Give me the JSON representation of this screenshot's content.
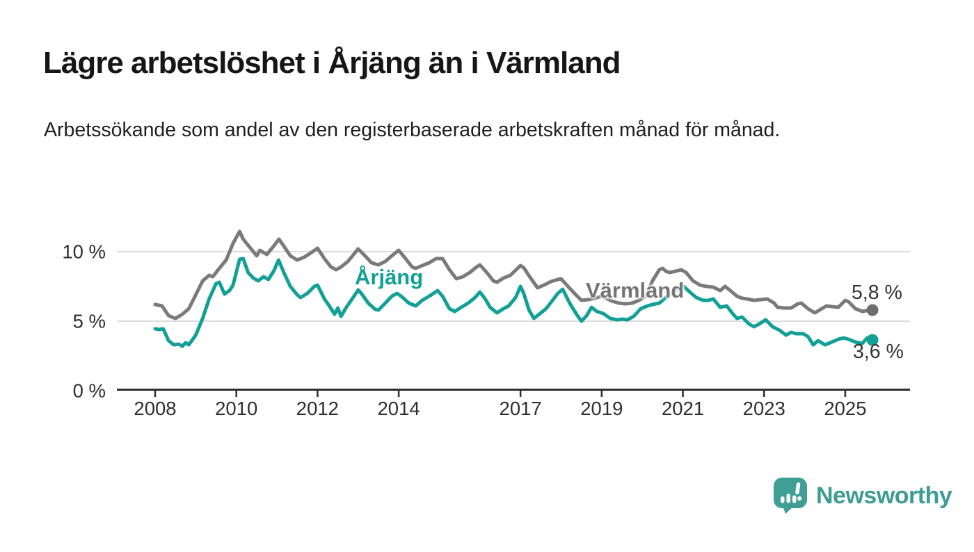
{
  "page": {
    "title": "Lägre arbetslöshet i Årjäng än i Värmland",
    "subtitle": "Arbetssökande som andel av den registerbaserade arbetskraften månad för månad."
  },
  "chart_data": {
    "type": "line",
    "title": "Lägre arbetslöshet i Årjäng än i Värmland",
    "subtitle": "Arbetssökande som andel av den registerbaserade arbetskraften månad för månad.",
    "unit": "%",
    "grid": "horizontal",
    "x_range": [
      2008.0,
      2025.67
    ],
    "ylim": [
      0,
      11.8
    ],
    "x_axis": {
      "ticks": [
        2008,
        2010,
        2012,
        2014,
        2017,
        2019,
        2021,
        2023,
        2025
      ]
    },
    "y_axis": {
      "ticks": [
        {
          "value": 0,
          "label": "0 %"
        },
        {
          "value": 5,
          "label": "5 %"
        },
        {
          "value": 10,
          "label": "10 %"
        }
      ]
    },
    "series": [
      {
        "name": "Värmland",
        "color": "#7a7a7a",
        "dot_color": "#6d6d6d",
        "end_label": "5,8 %",
        "end_value": 5.8,
        "points": [
          [
            2008.0,
            6.2
          ],
          [
            2008.17,
            6.1
          ],
          [
            2008.33,
            5.4
          ],
          [
            2008.5,
            5.2
          ],
          [
            2008.67,
            5.5
          ],
          [
            2008.83,
            5.9
          ],
          [
            2009.0,
            6.9
          ],
          [
            2009.17,
            7.9
          ],
          [
            2009.33,
            8.3
          ],
          [
            2009.42,
            8.2
          ],
          [
            2009.58,
            8.8
          ],
          [
            2009.75,
            9.4
          ],
          [
            2009.92,
            10.6
          ],
          [
            2010.08,
            11.45
          ],
          [
            2010.17,
            10.9
          ],
          [
            2010.25,
            10.6
          ],
          [
            2010.42,
            10.0
          ],
          [
            2010.5,
            9.7
          ],
          [
            2010.58,
            10.1
          ],
          [
            2010.75,
            9.8
          ],
          [
            2010.92,
            10.4
          ],
          [
            2011.05,
            10.9
          ],
          [
            2011.17,
            10.4
          ],
          [
            2011.33,
            9.7
          ],
          [
            2011.5,
            9.4
          ],
          [
            2011.67,
            9.6
          ],
          [
            2011.83,
            9.9
          ],
          [
            2012.0,
            10.25
          ],
          [
            2012.17,
            9.5
          ],
          [
            2012.33,
            8.9
          ],
          [
            2012.46,
            8.7
          ],
          [
            2012.58,
            8.9
          ],
          [
            2012.75,
            9.3
          ],
          [
            2013.0,
            10.2
          ],
          [
            2013.17,
            9.7
          ],
          [
            2013.33,
            9.2
          ],
          [
            2013.5,
            9.05
          ],
          [
            2013.67,
            9.3
          ],
          [
            2013.83,
            9.7
          ],
          [
            2014.0,
            10.1
          ],
          [
            2014.17,
            9.5
          ],
          [
            2014.33,
            8.9
          ],
          [
            2014.42,
            8.8
          ],
          [
            2014.58,
            9.0
          ],
          [
            2014.75,
            9.2
          ],
          [
            2014.92,
            9.5
          ],
          [
            2015.08,
            9.5
          ],
          [
            2015.25,
            8.7
          ],
          [
            2015.42,
            8.05
          ],
          [
            2015.58,
            8.2
          ],
          [
            2015.75,
            8.5
          ],
          [
            2015.92,
            8.9
          ],
          [
            2016.0,
            9.05
          ],
          [
            2016.17,
            8.5
          ],
          [
            2016.33,
            7.9
          ],
          [
            2016.42,
            7.8
          ],
          [
            2016.58,
            8.1
          ],
          [
            2016.75,
            8.3
          ],
          [
            2017.0,
            9.0
          ],
          [
            2017.08,
            8.85
          ],
          [
            2017.25,
            8.1
          ],
          [
            2017.42,
            7.4
          ],
          [
            2017.58,
            7.6
          ],
          [
            2017.75,
            7.85
          ],
          [
            2017.92,
            8.0
          ],
          [
            2018.0,
            8.05
          ],
          [
            2018.17,
            7.5
          ],
          [
            2018.33,
            7.0
          ],
          [
            2018.5,
            6.5
          ],
          [
            2018.67,
            6.55
          ],
          [
            2018.83,
            6.65
          ],
          [
            2019.0,
            6.8
          ],
          [
            2019.25,
            6.45
          ],
          [
            2019.42,
            6.3
          ],
          [
            2019.58,
            6.25
          ],
          [
            2019.75,
            6.3
          ],
          [
            2019.92,
            6.5
          ],
          [
            2020.08,
            6.8
          ],
          [
            2020.25,
            7.9
          ],
          [
            2020.42,
            8.7
          ],
          [
            2020.5,
            8.8
          ],
          [
            2020.58,
            8.6
          ],
          [
            2020.67,
            8.5
          ],
          [
            2020.83,
            8.6
          ],
          [
            2020.96,
            8.7
          ],
          [
            2021.08,
            8.5
          ],
          [
            2021.25,
            7.9
          ],
          [
            2021.42,
            7.6
          ],
          [
            2021.58,
            7.5
          ],
          [
            2021.75,
            7.45
          ],
          [
            2021.92,
            7.2
          ],
          [
            2022.04,
            7.5
          ],
          [
            2022.17,
            7.2
          ],
          [
            2022.33,
            6.8
          ],
          [
            2022.46,
            6.65
          ],
          [
            2022.58,
            6.6
          ],
          [
            2022.75,
            6.5
          ],
          [
            2022.92,
            6.55
          ],
          [
            2023.08,
            6.6
          ],
          [
            2023.25,
            6.3
          ],
          [
            2023.33,
            6.0
          ],
          [
            2023.5,
            5.95
          ],
          [
            2023.67,
            5.95
          ],
          [
            2023.83,
            6.25
          ],
          [
            2023.92,
            6.3
          ],
          [
            2024.08,
            5.9
          ],
          [
            2024.25,
            5.6
          ],
          [
            2024.42,
            5.9
          ],
          [
            2024.54,
            6.1
          ],
          [
            2024.67,
            6.05
          ],
          [
            2024.83,
            6.0
          ],
          [
            2025.0,
            6.5
          ],
          [
            2025.08,
            6.4
          ],
          [
            2025.25,
            5.9
          ],
          [
            2025.42,
            5.7
          ],
          [
            2025.58,
            5.8
          ],
          [
            2025.67,
            5.8
          ]
        ]
      },
      {
        "name": "Årjäng",
        "color": "#12a096",
        "dot_color": "#12a096",
        "end_label": "3,6 %",
        "end_value": 3.6,
        "points": [
          [
            2008.0,
            4.45
          ],
          [
            2008.1,
            4.4
          ],
          [
            2008.2,
            4.45
          ],
          [
            2008.33,
            3.6
          ],
          [
            2008.46,
            3.3
          ],
          [
            2008.58,
            3.35
          ],
          [
            2008.67,
            3.2
          ],
          [
            2008.75,
            3.45
          ],
          [
            2008.83,
            3.3
          ],
          [
            2009.0,
            4.0
          ],
          [
            2009.17,
            5.2
          ],
          [
            2009.33,
            6.6
          ],
          [
            2009.5,
            7.7
          ],
          [
            2009.58,
            7.8
          ],
          [
            2009.71,
            6.95
          ],
          [
            2009.83,
            7.2
          ],
          [
            2009.92,
            7.6
          ],
          [
            2010.08,
            9.45
          ],
          [
            2010.17,
            9.5
          ],
          [
            2010.29,
            8.5
          ],
          [
            2010.42,
            8.1
          ],
          [
            2010.54,
            7.9
          ],
          [
            2010.67,
            8.2
          ],
          [
            2010.79,
            8.0
          ],
          [
            2010.92,
            8.6
          ],
          [
            2011.04,
            9.4
          ],
          [
            2011.17,
            8.5
          ],
          [
            2011.33,
            7.5
          ],
          [
            2011.5,
            6.9
          ],
          [
            2011.58,
            6.7
          ],
          [
            2011.75,
            7.0
          ],
          [
            2011.92,
            7.5
          ],
          [
            2012.0,
            7.6
          ],
          [
            2012.17,
            6.6
          ],
          [
            2012.29,
            6.1
          ],
          [
            2012.42,
            5.5
          ],
          [
            2012.5,
            5.95
          ],
          [
            2012.58,
            5.35
          ],
          [
            2012.71,
            6.0
          ],
          [
            2012.83,
            6.5
          ],
          [
            2013.0,
            7.25
          ],
          [
            2013.08,
            7.0
          ],
          [
            2013.25,
            6.3
          ],
          [
            2013.42,
            5.85
          ],
          [
            2013.5,
            5.8
          ],
          [
            2013.67,
            6.3
          ],
          [
            2013.83,
            6.8
          ],
          [
            2013.96,
            7.0
          ],
          [
            2014.08,
            6.75
          ],
          [
            2014.25,
            6.3
          ],
          [
            2014.42,
            6.1
          ],
          [
            2014.58,
            6.5
          ],
          [
            2014.75,
            6.8
          ],
          [
            2014.96,
            7.2
          ],
          [
            2015.08,
            6.8
          ],
          [
            2015.25,
            5.9
          ],
          [
            2015.38,
            5.7
          ],
          [
            2015.54,
            6.0
          ],
          [
            2015.71,
            6.3
          ],
          [
            2015.88,
            6.7
          ],
          [
            2016.0,
            7.1
          ],
          [
            2016.13,
            6.6
          ],
          [
            2016.25,
            6.0
          ],
          [
            2016.42,
            5.6
          ],
          [
            2016.58,
            5.9
          ],
          [
            2016.71,
            6.1
          ],
          [
            2016.88,
            6.7
          ],
          [
            2017.0,
            7.5
          ],
          [
            2017.08,
            7.0
          ],
          [
            2017.21,
            5.8
          ],
          [
            2017.33,
            5.2
          ],
          [
            2017.46,
            5.5
          ],
          [
            2017.63,
            5.9
          ],
          [
            2017.79,
            6.5
          ],
          [
            2017.92,
            7.0
          ],
          [
            2018.04,
            7.3
          ],
          [
            2018.21,
            6.3
          ],
          [
            2018.38,
            5.5
          ],
          [
            2018.5,
            5.0
          ],
          [
            2018.63,
            5.4
          ],
          [
            2018.75,
            6.0
          ],
          [
            2018.88,
            5.7
          ],
          [
            2019.04,
            5.55
          ],
          [
            2019.21,
            5.2
          ],
          [
            2019.38,
            5.1
          ],
          [
            2019.5,
            5.15
          ],
          [
            2019.63,
            5.1
          ],
          [
            2019.79,
            5.35
          ],
          [
            2019.96,
            5.9
          ],
          [
            2020.13,
            6.1
          ],
          [
            2020.25,
            6.2
          ],
          [
            2020.42,
            6.3
          ],
          [
            2020.58,
            6.7
          ],
          [
            2020.75,
            7.1
          ],
          [
            2020.92,
            7.4
          ],
          [
            2021.0,
            7.55
          ],
          [
            2021.17,
            7.1
          ],
          [
            2021.33,
            6.7
          ],
          [
            2021.5,
            6.5
          ],
          [
            2021.63,
            6.5
          ],
          [
            2021.75,
            6.6
          ],
          [
            2021.92,
            6.0
          ],
          [
            2022.08,
            6.1
          ],
          [
            2022.21,
            5.6
          ],
          [
            2022.33,
            5.2
          ],
          [
            2022.46,
            5.3
          ],
          [
            2022.63,
            4.8
          ],
          [
            2022.75,
            4.6
          ],
          [
            2022.88,
            4.8
          ],
          [
            2023.04,
            5.1
          ],
          [
            2023.21,
            4.6
          ],
          [
            2023.38,
            4.35
          ],
          [
            2023.54,
            4.0
          ],
          [
            2023.67,
            4.2
          ],
          [
            2023.79,
            4.1
          ],
          [
            2023.96,
            4.1
          ],
          [
            2024.08,
            3.9
          ],
          [
            2024.21,
            3.3
          ],
          [
            2024.33,
            3.6
          ],
          [
            2024.5,
            3.3
          ],
          [
            2024.67,
            3.5
          ],
          [
            2024.83,
            3.7
          ],
          [
            2024.96,
            3.8
          ],
          [
            2025.08,
            3.7
          ],
          [
            2025.25,
            3.5
          ],
          [
            2025.42,
            3.4
          ],
          [
            2025.54,
            3.8
          ],
          [
            2025.67,
            3.65
          ]
        ]
      }
    ]
  },
  "colors": {
    "accent_teal": "#12a096",
    "series_gray": "#7a7a7a",
    "gridline": "#dcdcdc",
    "axis": "#2e2e2e",
    "text_dark": "#161616",
    "logo_teal": "#3d9c94"
  },
  "logo": {
    "name": "Newsworthy",
    "icon": "bar-chart-speech-bubble-icon"
  }
}
